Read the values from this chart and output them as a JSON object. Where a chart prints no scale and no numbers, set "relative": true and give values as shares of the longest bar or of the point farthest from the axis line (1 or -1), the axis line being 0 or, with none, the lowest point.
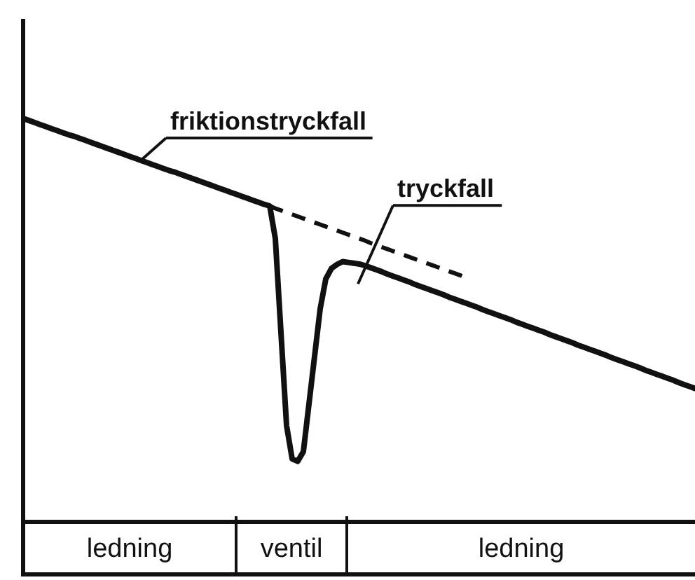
{
  "chart_data": {
    "type": "line",
    "relative": true,
    "categories": [
      null,
      null,
      null,
      null,
      null,
      null,
      null,
      null,
      null,
      null,
      null,
      null,
      null,
      null,
      null,
      null,
      null,
      null,
      null,
      null,
      null,
      null,
      null,
      null,
      null,
      null,
      null,
      null,
      null,
      null,
      null,
      null,
      null,
      null,
      null,
      null,
      null,
      null,
      null,
      null,
      null,
      null,
      null,
      null,
      null,
      null,
      null,
      null,
      null,
      null,
      null,
      null,
      null,
      null,
      null,
      null,
      null,
      null,
      null,
      null,
      null,
      null,
      null,
      null,
      null,
      null,
      null,
      null,
      null,
      null,
      null,
      null,
      null,
      null,
      null,
      null,
      null,
      null,
      null,
      null,
      null,
      null,
      null,
      null,
      null,
      null,
      null,
      null,
      null,
      null,
      null,
      null,
      null,
      null,
      null,
      null,
      null,
      null,
      null,
      null,
      null,
      null,
      null,
      null,
      null,
      null,
      null,
      null,
      null,
      null,
      null,
      null,
      null,
      null,
      null,
      null,
      null,
      null,
      null,
      null,
      null
    ],
    "series": [
      {
        "color": "#111111",
        "line_style": "solid",
        "values": [
          1.0,
          0.995,
          0.99,
          0.985,
          0.98,
          0.975,
          0.97,
          0.965,
          0.96,
          0.956,
          0.951,
          0.946,
          0.941,
          0.936,
          0.931,
          0.926,
          0.921,
          0.916,
          0.911,
          0.906,
          0.901,
          0.896,
          0.891,
          0.886,
          0.881,
          0.876,
          0.871,
          0.867,
          0.862,
          0.857,
          0.852,
          0.847,
          0.842,
          0.837,
          0.832,
          0.827,
          0.822,
          0.817,
          0.812,
          0.807,
          0.802,
          0.797,
          0.792,
          0.787,
          0.783,
          0.702,
          0.47,
          0.239,
          0.156,
          0.15,
          0.174,
          0.292,
          0.41,
          0.528,
          0.602,
          0.628,
          0.638,
          0.645,
          0.643,
          0.641,
          0.639,
          0.635,
          0.63,
          0.625,
          0.62,
          0.614,
          0.609,
          0.604,
          0.599,
          0.594,
          0.588,
          0.583,
          0.578,
          0.573,
          0.568,
          0.563,
          0.557,
          0.552,
          0.547,
          0.542,
          0.537,
          0.532,
          0.526,
          0.521,
          0.516,
          0.511,
          0.506,
          0.501,
          0.495,
          0.49,
          0.485,
          0.48,
          0.475,
          0.47,
          0.464,
          0.459,
          0.454,
          0.449,
          0.444,
          0.438,
          0.433,
          0.428,
          0.423,
          0.418,
          0.413,
          0.407,
          0.402,
          0.397,
          0.392,
          0.387,
          0.382,
          0.376,
          0.371,
          0.366,
          0.361,
          0.356,
          0.351,
          0.345,
          0.34,
          0.335,
          0.33
        ]
      },
      {
        "color": "#111111",
        "line_style": "dashed",
        "values": [
          null,
          null,
          null,
          null,
          null,
          null,
          null,
          null,
          null,
          null,
          null,
          null,
          null,
          null,
          null,
          null,
          null,
          null,
          null,
          null,
          null,
          null,
          null,
          null,
          null,
          null,
          null,
          null,
          null,
          null,
          null,
          null,
          null,
          null,
          null,
          null,
          null,
          null,
          null,
          null,
          null,
          null,
          null,
          null,
          0.783,
          0.777,
          0.772,
          0.767,
          0.762,
          0.757,
          0.752,
          0.747,
          0.742,
          0.737,
          0.732,
          0.727,
          0.722,
          0.717,
          0.712,
          0.707,
          0.702,
          0.697,
          0.691,
          0.686,
          0.681,
          0.676,
          0.671,
          0.666,
          0.661,
          0.656,
          0.651,
          0.646,
          0.641,
          0.636,
          0.631,
          0.626,
          0.621,
          0.616,
          0.611,
          0.605,
          null,
          null,
          null,
          null,
          null,
          null,
          null,
          null,
          null,
          null,
          null,
          null,
          null,
          null,
          null,
          null,
          null,
          null,
          null,
          null,
          null,
          null,
          null,
          null,
          null,
          null,
          null,
          null,
          null,
          null,
          null,
          null,
          null,
          null,
          null,
          null,
          null,
          null,
          null,
          null,
          null
        ]
      }
    ],
    "annotations": [
      "friktionstryckfall",
      "tryckfall",
      "ledning",
      "ventil",
      "ledning"
    ]
  }
}
